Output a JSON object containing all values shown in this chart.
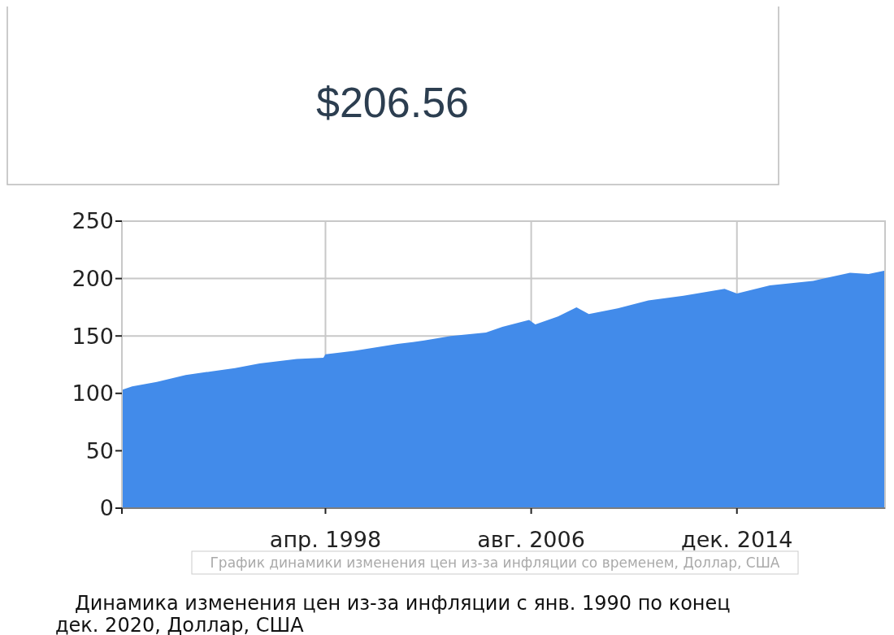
{
  "chart_data": [
    {
      "type": "other",
      "title": "$206.56"
    },
    {
      "type": "area",
      "x": [
        "1990-01",
        "1990-06",
        "1991-06",
        "1992-08",
        "1993-08",
        "1994-08",
        "1995-08",
        "1997-02",
        "1998-03",
        "1998-04",
        "1999-06",
        "2001-03",
        "2002-04",
        "2003-05",
        "2004-10",
        "2005-06",
        "2006-07",
        "2006-10",
        "2007-09",
        "2008-06",
        "2008-12",
        "2010-02",
        "2011-05",
        "2012-10",
        "2014-06",
        "2014-12",
        "2016-04",
        "2018-01",
        "2019-07",
        "2020-04",
        "2020-12"
      ],
      "series": [
        {
          "color": "#428bea",
          "values": [
            103,
            106,
            110,
            116,
            119,
            122,
            126,
            130,
            131,
            134,
            137,
            143,
            146,
            150,
            153,
            158,
            164,
            160,
            167,
            175,
            169,
            174,
            181,
            185,
            191,
            187,
            194,
            198,
            205,
            204,
            207
          ]
        }
      ],
      "xlim": [
        "1990-01",
        "2020-12"
      ],
      "xticks": [
        {
          "value": "1990-01",
          "label": null
        },
        {
          "value": "1998-04",
          "label": "апр. 1998"
        },
        {
          "value": "2006-08",
          "label": "авг. 2006"
        },
        {
          "value": "2014-12",
          "label": "дек. 2014"
        }
      ],
      "ylim": [
        0,
        250
      ],
      "yticks": [
        0,
        50,
        100,
        150,
        200,
        250
      ],
      "grid": true,
      "annotations": [
        "График динамики изменения цен из-за инфляции со временем, Доллар, США",
        "Динамика изменения цен из-за инфляции с янв. 1990 по конец дек. 2020, Доллар, США"
      ]
    }
  ]
}
